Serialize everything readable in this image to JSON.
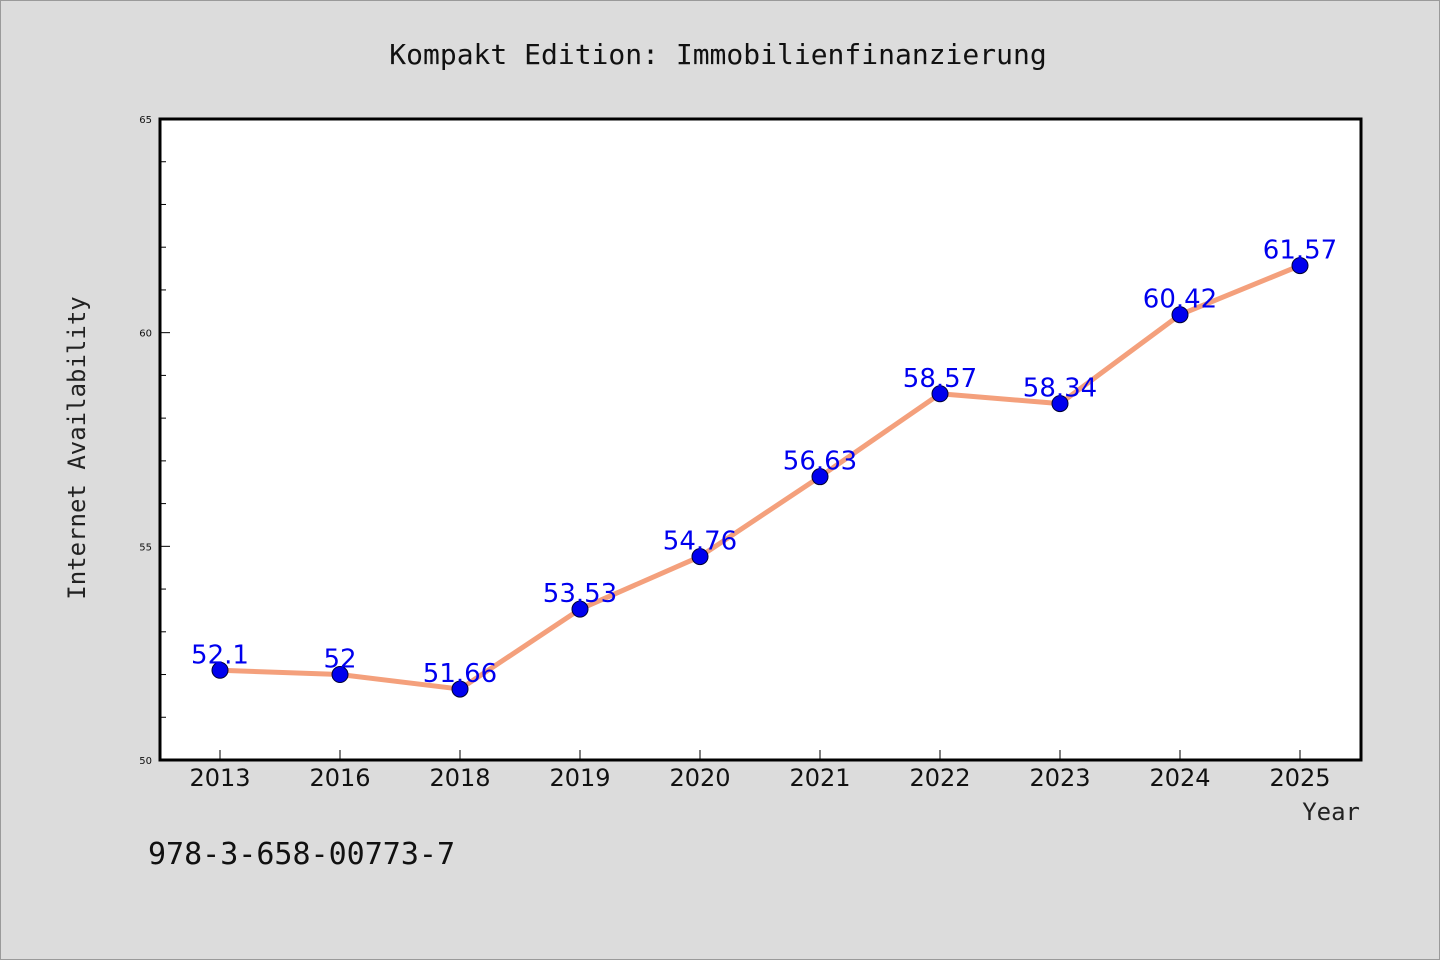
{
  "chart_data": {
    "type": "line",
    "title": "Kompakt Edition: Immobilienfinanzierung",
    "xlabel": "Year",
    "ylabel": "Internet Availability",
    "categories": [
      "2013",
      "2016",
      "2018",
      "2019",
      "2020",
      "2021",
      "2022",
      "2023",
      "2024",
      "2025"
    ],
    "series": [
      {
        "values": [
          52.1,
          52.0,
          51.66,
          53.53,
          54.76,
          56.63,
          58.57,
          58.34,
          60.42,
          61.57
        ]
      }
    ],
    "data_labels": [
      "52.1",
      "52",
      "51.66",
      "53.53",
      "54.76",
      "56.63",
      "58.57",
      "58.34",
      "60.42",
      "61.57"
    ],
    "ylim": [
      50,
      65
    ],
    "yticks": [
      "50",
      "55",
      "60",
      "65"
    ],
    "grid": false,
    "line_color": "#f4a07c",
    "marker_color": "#0000ee"
  },
  "footer": {
    "isbn": "978-3-658-00773-7"
  }
}
